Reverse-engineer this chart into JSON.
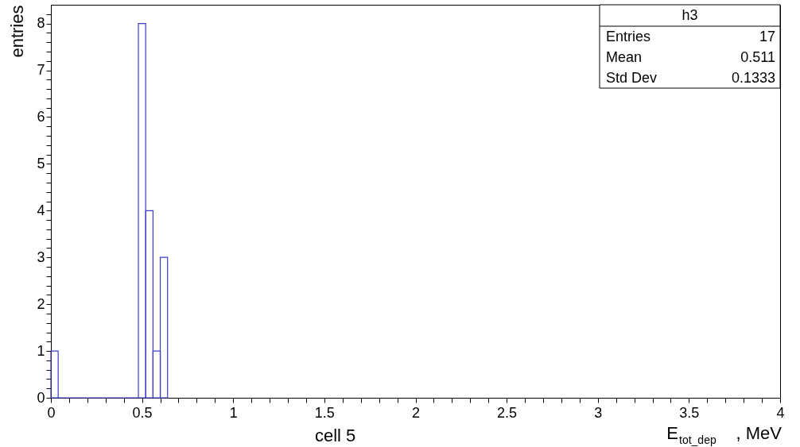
{
  "chart_data": {
    "type": "histogram",
    "title": "h3",
    "ylabel": "entries",
    "xlabel": "E$_{tot_dep}$, MeV",
    "bins": [
      0,
      0.04,
      0.08,
      0.12,
      0.16,
      0.2,
      0.24,
      0.28,
      0.32,
      0.36,
      0.4,
      0.44,
      0.48,
      0.52,
      0.56,
      0.6,
      0.64
    ],
    "values": [
      1,
      0,
      0,
      0,
      0,
      0,
      0,
      0,
      0,
      0,
      0,
      0,
      8,
      4,
      1,
      3
    ],
    "color": "#3c3cc8",
    "xlim": [
      0,
      4
    ],
    "ylim": [
      0,
      8.4
    ],
    "xticks": [
      0,
      {
        "value": 0.1,
        "label": null
      },
      {
        "value": 0.2,
        "label": null
      },
      {
        "value": 0.3,
        "label": null
      },
      {
        "value": 0.4,
        "label": null
      },
      0.5,
      {
        "value": 0.6,
        "label": null
      },
      {
        "value": 0.7,
        "label": null
      },
      {
        "value": 0.8,
        "label": null
      },
      {
        "value": 0.9,
        "label": null
      },
      1,
      {
        "value": 1.1,
        "label": null
      },
      {
        "value": 1.2,
        "label": null
      },
      {
        "value": 1.3,
        "label": null
      },
      {
        "value": 1.4,
        "label": null
      },
      1.5,
      {
        "value": 1.6,
        "label": null
      },
      {
        "value": 1.7,
        "label": null
      },
      {
        "value": 1.8,
        "label": null
      },
      {
        "value": 1.9,
        "label": null
      },
      2,
      {
        "value": 2.1,
        "label": null
      },
      {
        "value": 2.2,
        "label": null
      },
      {
        "value": 2.3,
        "label": null
      },
      {
        "value": 2.4,
        "label": null
      },
      2.5,
      {
        "value": 2.6,
        "label": null
      },
      {
        "value": 2.7,
        "label": null
      },
      {
        "value": 2.8,
        "label": null
      },
      {
        "value": 2.9,
        "label": null
      },
      3,
      {
        "value": 3.1,
        "label": null
      },
      {
        "value": 3.2,
        "label": null
      },
      {
        "value": 3.3,
        "label": null
      },
      {
        "value": 3.4,
        "label": null
      },
      3.5,
      {
        "value": 3.6,
        "label": null
      },
      {
        "value": 3.7,
        "label": null
      },
      {
        "value": 3.8,
        "label": null
      },
      {
        "value": 3.9,
        "label": null
      },
      4
    ],
    "yticks": [
      0,
      {
        "value": 0.2,
        "label": null
      },
      {
        "value": 0.4,
        "label": null
      },
      {
        "value": 0.6,
        "label": null
      },
      {
        "value": 0.8,
        "label": null
      },
      1,
      {
        "value": 1.2,
        "label": null
      },
      {
        "value": 1.4,
        "label": null
      },
      {
        "value": 1.6,
        "label": null
      },
      {
        "value": 1.8,
        "label": null
      },
      2,
      {
        "value": 2.2,
        "label": null
      },
      {
        "value": 2.4,
        "label": null
      },
      {
        "value": 2.6,
        "label": null
      },
      {
        "value": 2.8,
        "label": null
      },
      3,
      {
        "value": 3.2,
        "label": null
      },
      {
        "value": 3.4,
        "label": null
      },
      {
        "value": 3.6,
        "label": null
      },
      {
        "value": 3.8,
        "label": null
      },
      4,
      {
        "value": 4.2,
        "label": null
      },
      {
        "value": 4.4,
        "label": null
      },
      {
        "value": 4.6,
        "label": null
      },
      {
        "value": 4.8,
        "label": null
      },
      5,
      {
        "value": 5.2,
        "label": null
      },
      {
        "value": 5.4,
        "label": null
      },
      {
        "value": 5.6,
        "label": null
      },
      {
        "value": 5.8,
        "label": null
      },
      6,
      {
        "value": 6.2,
        "label": null
      },
      {
        "value": 6.4,
        "label": null
      },
      {
        "value": 6.6,
        "label": null
      },
      {
        "value": 6.8,
        "label": null
      },
      7,
      {
        "value": 7.2,
        "label": null
      },
      {
        "value": 7.4,
        "label": null
      },
      {
        "value": 7.6,
        "label": null
      },
      {
        "value": 7.8,
        "label": null
      },
      8,
      {
        "value": 8.2,
        "label": null
      }
    ],
    "grid": false,
    "annotations": [
      "cell 5",
      "Entries",
      "17",
      "Mean",
      "0.511",
      "Std Dev",
      "0.1333"
    ]
  }
}
